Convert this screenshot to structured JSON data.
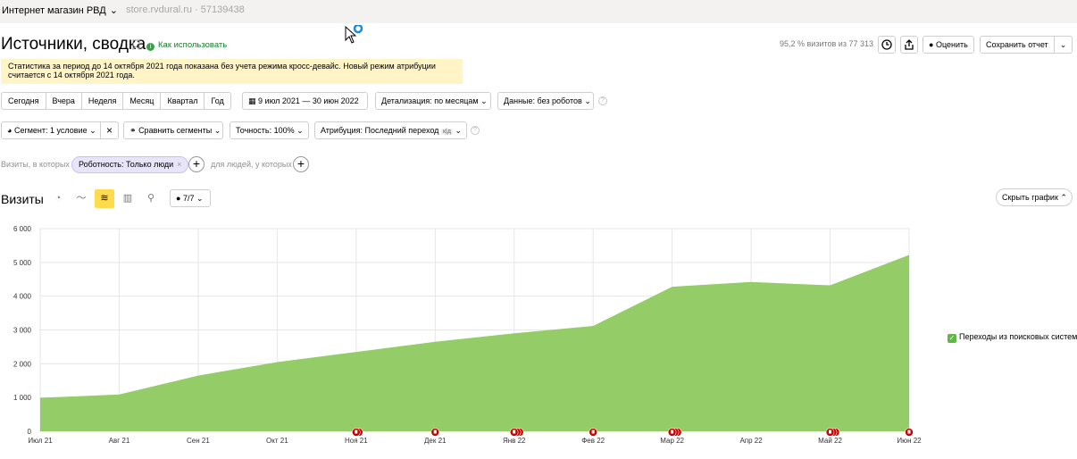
{
  "topbar": {
    "site_name": "Интернет магазин РВД",
    "url_counter": "store.rvdural.ru · 57139438"
  },
  "header": {
    "title": "Источники, сводка",
    "how_to": "Как использовать",
    "visits_share": "95,2 % визитов из 77 313",
    "rate_label": "Оценить",
    "save_label": "Сохранить отчет"
  },
  "notice": {
    "line1": "Статистика за период до 14 октября 2021 года показана без учета режима кросс-девайс. Новый режим атрибуции",
    "line2": "считается с 14 октября 2021 года."
  },
  "periods": [
    "Сегодня",
    "Вчера",
    "Неделя",
    "Месяц",
    "Квартал",
    "Год"
  ],
  "date_range": "9 июл 2021 — 30 июн 2022",
  "detail": "Детализация: по месяцам",
  "data_filter": "Данные: без роботов",
  "segment": "Сегмент: 1 условие",
  "compare": "Сравнить сегменты",
  "accuracy": "Точность: 100%",
  "attribution": "Атрибуция: Последний переход",
  "attribution_badge": "к|д",
  "filters": {
    "visits_label": "Визиты, в которых",
    "chip": "Роботность: Только люди",
    "people_label": "для людей, у которых"
  },
  "chart_section": {
    "title": "Визиты",
    "metrics_count": "7/7",
    "hide_label": "Скрыть график"
  },
  "colors": {
    "area": "#94cc67",
    "accent": "#ffdb4d",
    "marker": "#cc0000"
  },
  "chart_data": {
    "type": "area",
    "categories": [
      "Июл 21",
      "Авг 21",
      "Сен 21",
      "Окт 21",
      "Ноя 21",
      "Дек 21",
      "Янв 22",
      "Фев 22",
      "Мар 22",
      "Апр 22",
      "Май 22",
      "Июн 22"
    ],
    "series": [
      {
        "name": "Переходы из поисковых систем",
        "values": [
          990,
          1090,
          1650,
          2050,
          2350,
          2650,
          2900,
          3120,
          4280,
          4420,
          4320,
          5220
        ]
      }
    ],
    "yticks": [
      "0",
      "1 000",
      "2 000",
      "3 000",
      "4 000",
      "5 000",
      "6 000"
    ],
    "ylim": [
      0,
      6000
    ],
    "grid": true,
    "legend": "right",
    "annotation_markers": [
      {
        "month": "Ноя 21",
        "count": 2
      },
      {
        "month": "Дек 21",
        "count": 1
      },
      {
        "month": "Янв 22",
        "count": 3
      },
      {
        "month": "Фев 22",
        "count": 1
      },
      {
        "month": "Мар 22",
        "count": 3
      },
      {
        "month": "Май 22",
        "count": 3
      },
      {
        "month": "Июн 22",
        "count": 1
      }
    ]
  }
}
